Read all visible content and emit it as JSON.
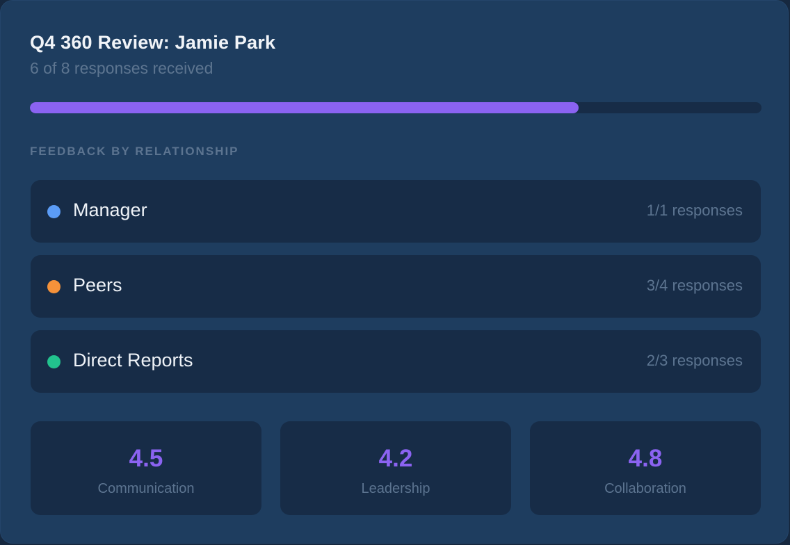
{
  "review": {
    "title": "Q4 360 Review: Jamie Park",
    "subtitle": "6 of 8 responses received",
    "progress_fraction": 0.75,
    "progress_color": "#8b63f1"
  },
  "section": {
    "label": "FEEDBACK BY RELATIONSHIP"
  },
  "relationships": [
    {
      "name": "Manager",
      "count": "1/1 responses",
      "color": "#5b9cf6"
    },
    {
      "name": "Peers",
      "count": "3/4 responses",
      "color": "#f5923a"
    },
    {
      "name": "Direct Reports",
      "count": "2/3 responses",
      "color": "#22c38e"
    }
  ],
  "metrics": [
    {
      "value": "4.5",
      "label": "Communication"
    },
    {
      "value": "4.2",
      "label": "Leadership"
    },
    {
      "value": "4.8",
      "label": "Collaboration"
    }
  ]
}
